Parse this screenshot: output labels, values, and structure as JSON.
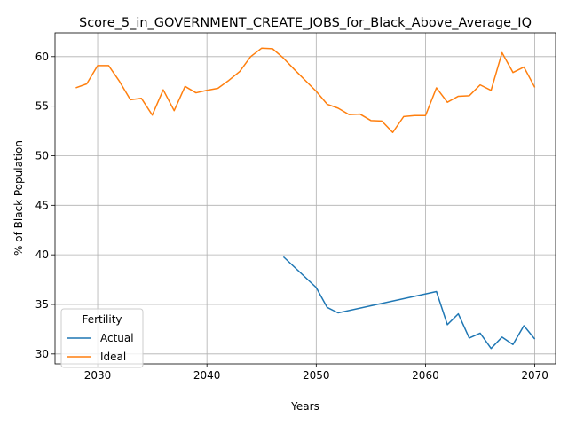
{
  "chart_data": {
    "type": "line",
    "title": "Score_5_in_GOVERNMENT_CREATE_JOBS_for_Black_Above_Average_IQ",
    "xlabel": "Years",
    "ylabel": "% of Black Population",
    "xlim": [
      2026.1,
      2071.9
    ],
    "ylim": [
      29.0,
      62.4
    ],
    "xticks": [
      2030,
      2040,
      2050,
      2060,
      2070
    ],
    "yticks": [
      30,
      35,
      40,
      45,
      50,
      55,
      60
    ],
    "grid": true,
    "legend": {
      "title": "Fertility",
      "placement": "lower-left"
    },
    "series": [
      {
        "name": "Actual",
        "color": "#1f77b4",
        "x": [
          2047,
          2050,
          2051,
          2052,
          2061,
          2062,
          2063,
          2064,
          2065,
          2066,
          2067,
          2068,
          2069,
          2070
        ],
        "y": [
          39.8,
          36.7,
          34.7,
          34.15,
          36.3,
          32.95,
          34.05,
          31.6,
          32.1,
          30.55,
          31.7,
          30.95,
          32.85,
          31.5
        ]
      },
      {
        "name": "Ideal",
        "color": "#ff7f0e",
        "x": [
          2028,
          2029,
          2030,
          2031,
          2032,
          2033,
          2034,
          2035,
          2036,
          2037,
          2038,
          2039,
          2040,
          2041,
          2042,
          2043,
          2044,
          2045,
          2046,
          2047,
          2048,
          2049,
          2050,
          2051,
          2052,
          2053,
          2054,
          2055,
          2056,
          2057,
          2058,
          2059,
          2060,
          2061,
          2062,
          2063,
          2064,
          2065,
          2066,
          2067,
          2068,
          2069,
          2070
        ],
        "y": [
          56.85,
          57.25,
          59.1,
          59.1,
          57.5,
          55.65,
          55.8,
          54.1,
          56.65,
          54.55,
          57.0,
          56.35,
          56.6,
          56.8,
          57.6,
          58.5,
          60.0,
          60.85,
          60.8,
          59.85,
          58.7,
          57.6,
          56.5,
          55.2,
          54.8,
          54.15,
          54.2,
          53.55,
          53.5,
          52.35,
          53.95,
          54.05,
          54.05,
          56.85,
          55.4,
          56.0,
          56.05,
          57.15,
          56.6,
          60.4,
          58.4,
          58.95,
          56.9
        ]
      }
    ]
  }
}
